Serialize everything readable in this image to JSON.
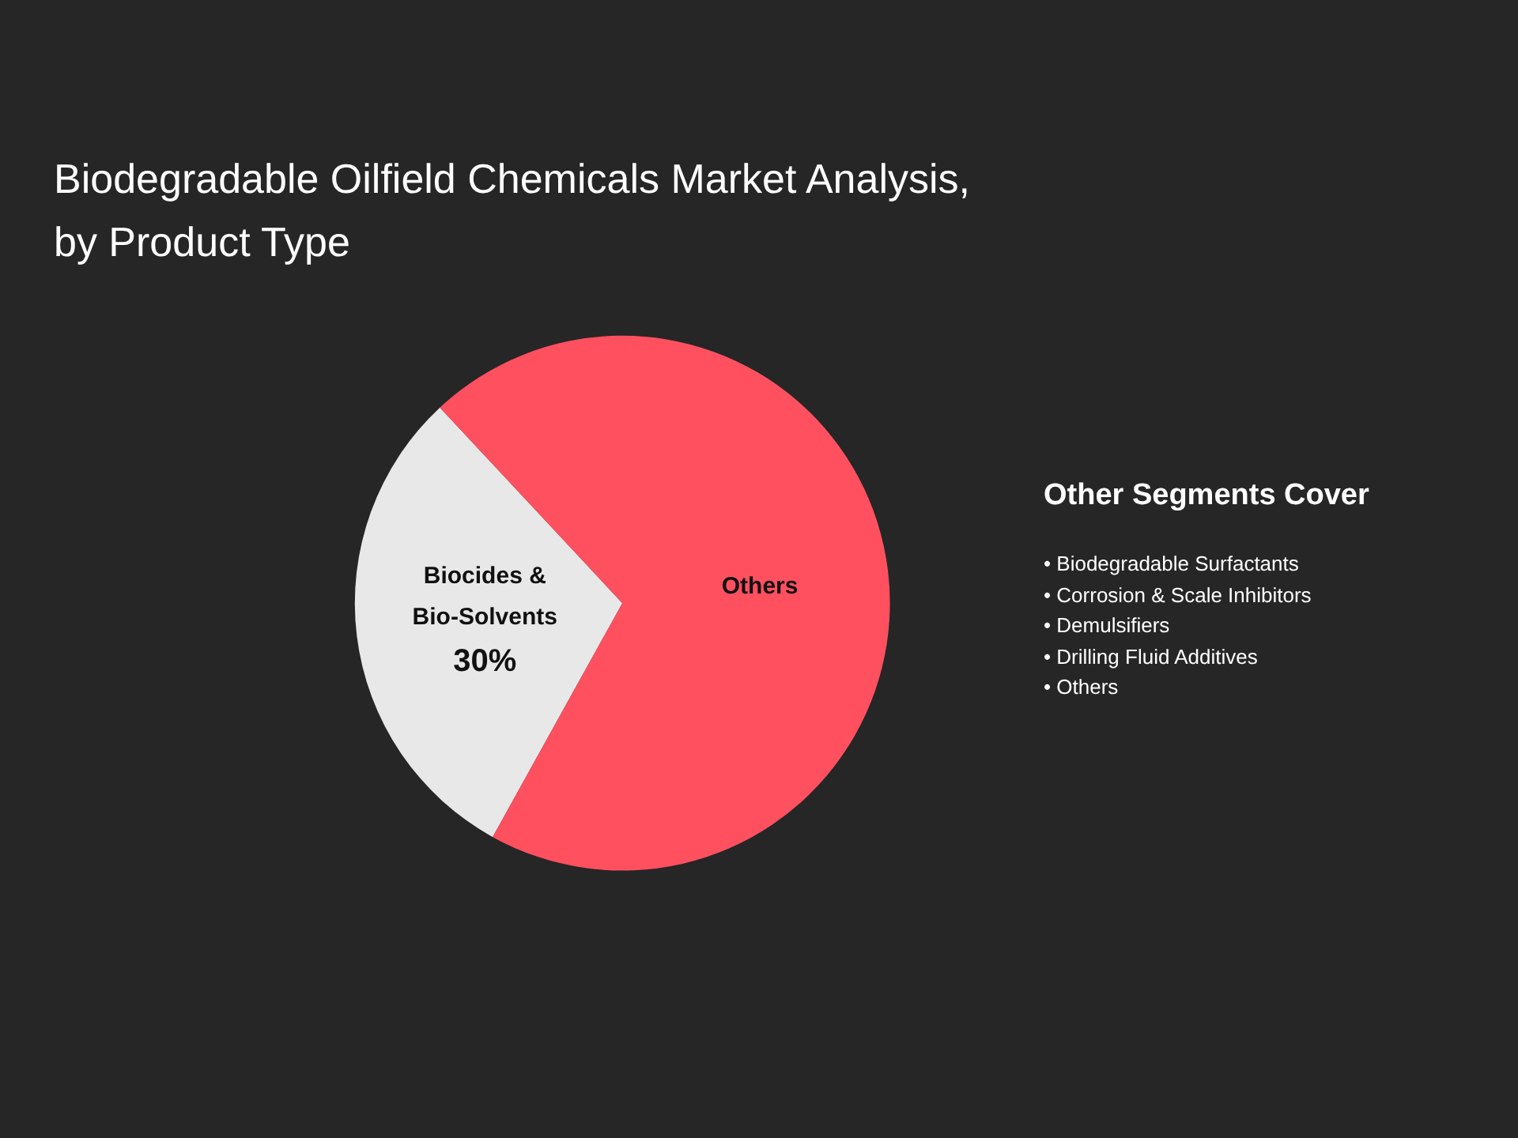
{
  "chart_data": {
    "type": "pie",
    "title": "Biodegradable Oilfield Chemicals Market Analysis, by Product Type",
    "categories": [
      "Biocides & Bio-Solvents",
      "Others"
    ],
    "values": [
      30,
      70
    ],
    "colors": [
      "#e8e8e8",
      "#ff5060"
    ],
    "value_labels": [
      "30%",
      null
    ],
    "annotations": [
      "Other Segments Cover",
      "• Biodegradable Surfactants",
      "• Corrosion & Scale Inhibitors",
      "• Demulsifiers",
      "• Drilling Fluid Additives",
      "• Others"
    ]
  }
}
